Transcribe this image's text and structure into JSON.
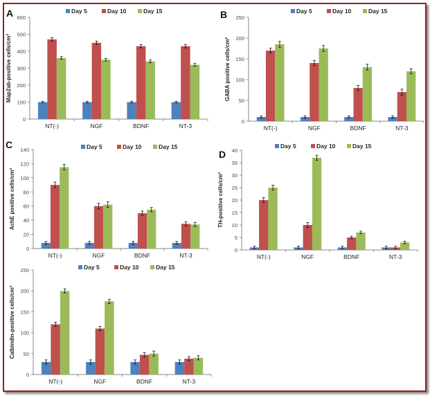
{
  "colors": {
    "Day 5": "#4f81bd",
    "Day 10": "#c0504d",
    "Day 15": "#9bbb59",
    "frame": "#9b1b1b"
  },
  "chart_data": [
    {
      "type": "bar",
      "panel_label": "A",
      "ylabel": "Map2ab-positive cells/cm²",
      "categories": [
        "NT(-)",
        "NGF",
        "BDNF",
        "NT-3"
      ],
      "ylim": [
        0,
        600
      ],
      "yticks": [
        0,
        100,
        200,
        300,
        400,
        500,
        600
      ],
      "legend": "top",
      "series": [
        {
          "name": "Day 5",
          "values": [
            100,
            100,
            100,
            100
          ],
          "errors": [
            5,
            5,
            5,
            5
          ]
        },
        {
          "name": "Day 10",
          "values": [
            470,
            450,
            430,
            430
          ],
          "errors": [
            10,
            10,
            10,
            10
          ]
        },
        {
          "name": "Day 15",
          "values": [
            360,
            350,
            340,
            320
          ],
          "errors": [
            8,
            8,
            8,
            8
          ]
        }
      ]
    },
    {
      "type": "bar",
      "panel_label": "B",
      "ylabel": "GABA positive cells/cm²",
      "categories": [
        "NT(-)",
        "NGF",
        "BDNF",
        "NT-3"
      ],
      "ylim": [
        0,
        250
      ],
      "yticks": [
        0,
        50,
        100,
        150,
        200,
        250
      ],
      "legend": "top",
      "series": [
        {
          "name": "Day 5",
          "values": [
            10,
            10,
            10,
            10
          ],
          "errors": [
            3,
            3,
            3,
            3
          ]
        },
        {
          "name": "Day 10",
          "values": [
            170,
            140,
            80,
            70
          ],
          "errors": [
            6,
            6,
            6,
            7
          ]
        },
        {
          "name": "Day 15",
          "values": [
            185,
            175,
            130,
            120
          ],
          "errors": [
            7,
            7,
            7,
            6
          ]
        }
      ]
    },
    {
      "type": "bar",
      "panel_label": "C",
      "ylabel": "AchE positive cells/cm²",
      "categories": [
        "NT(-)",
        "NGF",
        "BDNF",
        "NT-3"
      ],
      "ylim": [
        0,
        140
      ],
      "yticks": [
        0,
        20,
        40,
        60,
        80,
        100,
        120,
        140
      ],
      "legend": "top",
      "series": [
        {
          "name": "Day 5",
          "values": [
            8,
            8,
            8,
            8
          ],
          "errors": [
            2,
            2,
            2,
            2
          ]
        },
        {
          "name": "Day 10",
          "values": [
            90,
            60,
            50,
            35
          ],
          "errors": [
            4,
            4,
            3,
            3
          ]
        },
        {
          "name": "Day 15",
          "values": [
            115,
            62,
            55,
            34
          ],
          "errors": [
            4,
            4,
            3,
            3
          ]
        }
      ]
    },
    {
      "type": "bar",
      "panel_label": "D",
      "ylabel": "TH-positive cells/cm²",
      "categories": [
        "NT(-)",
        "NGF",
        "BDNF",
        "NT-3"
      ],
      "ylim": [
        0,
        40
      ],
      "yticks": [
        0,
        5,
        10,
        15,
        20,
        25,
        30,
        35,
        40
      ],
      "legend": "top",
      "series": [
        {
          "name": "Day 5",
          "values": [
            1,
            1,
            1,
            1
          ],
          "errors": [
            0.5,
            0.5,
            0.5,
            0.5
          ]
        },
        {
          "name": "Day 10",
          "values": [
            20,
            10,
            5,
            1
          ],
          "errors": [
            1,
            1,
            0.5,
            0.5
          ]
        },
        {
          "name": "Day 15",
          "values": [
            25,
            37,
            7,
            3
          ],
          "errors": [
            1,
            1,
            0.5,
            0.5
          ]
        }
      ]
    },
    {
      "type": "bar",
      "panel_label": "",
      "ylabel": "Calbindin-positive cells/cm²",
      "categories": [
        "NT(-)",
        "NGF",
        "BDNF",
        "NT-3"
      ],
      "ylim": [
        0,
        250
      ],
      "yticks": [
        0,
        50,
        100,
        150,
        200,
        250
      ],
      "legend": "top",
      "series": [
        {
          "name": "Day 5",
          "values": [
            30,
            30,
            30,
            30
          ],
          "errors": [
            5,
            5,
            5,
            5
          ]
        },
        {
          "name": "Day 10",
          "values": [
            120,
            110,
            47,
            38
          ],
          "errors": [
            5,
            5,
            5,
            5
          ]
        },
        {
          "name": "Day 15",
          "values": [
            200,
            175,
            50,
            40
          ],
          "errors": [
            5,
            5,
            6,
            5
          ]
        }
      ]
    }
  ]
}
